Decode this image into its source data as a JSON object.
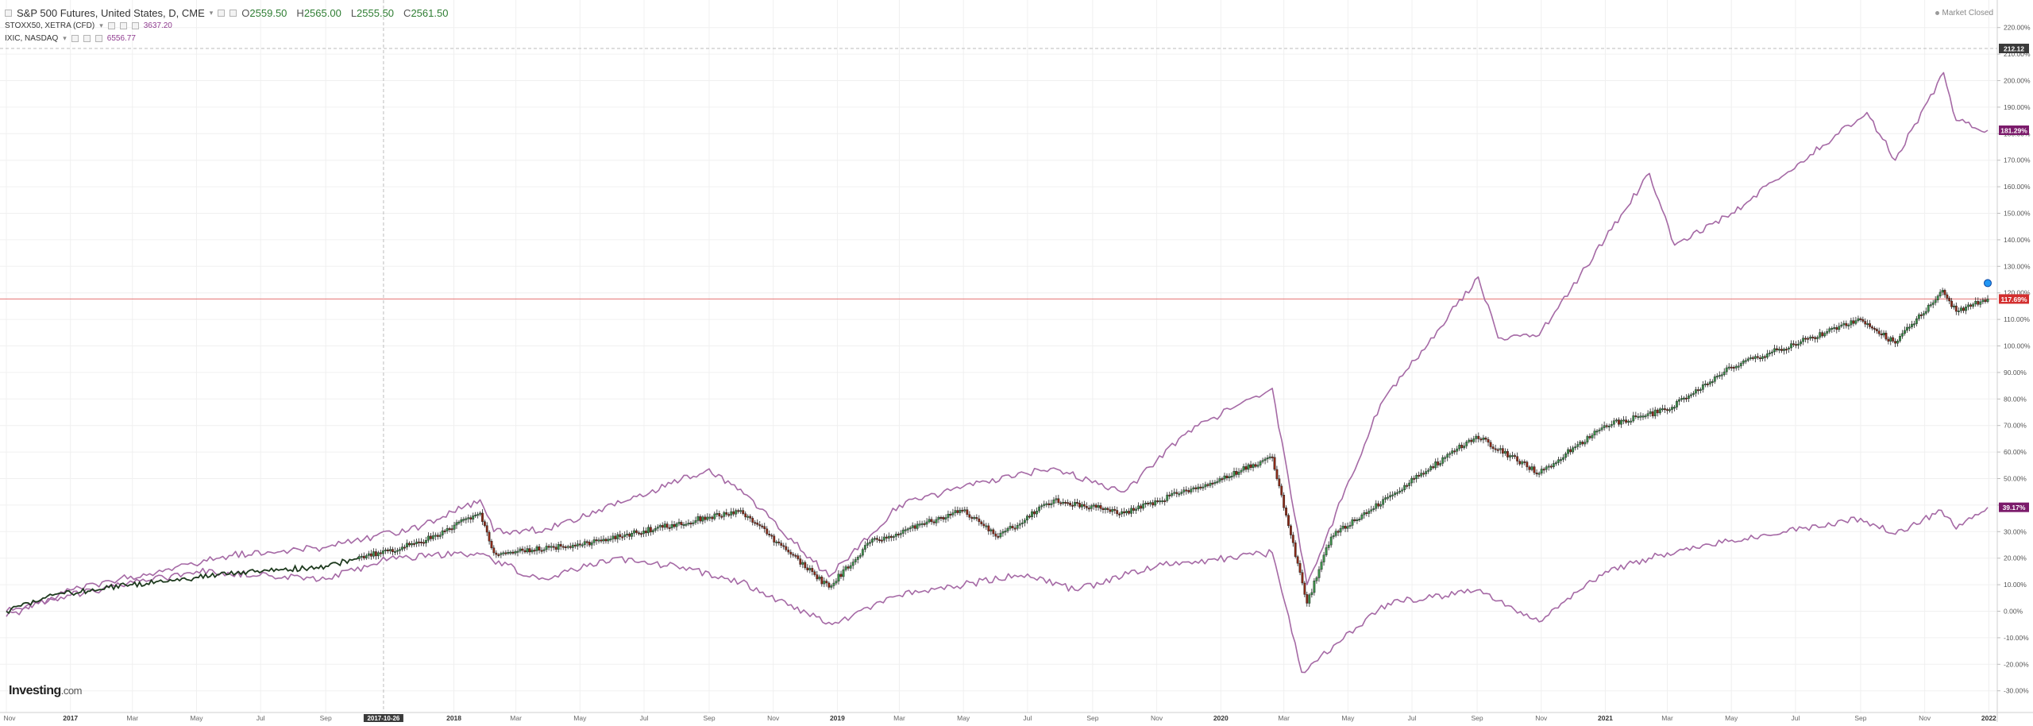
{
  "header": {
    "instrument": "S&P 500 Futures, United States, D, CME",
    "open_label": "O",
    "open": "2559.50",
    "high_label": "H",
    "high": "2565.00",
    "low_label": "L",
    "low": "2555.50",
    "close_label": "C",
    "close": "2561.50",
    "caret": "▾"
  },
  "comparisons": [
    {
      "symbol": "STOXX50, XETRA (CFD)",
      "value": "3637.20"
    },
    {
      "symbol": "IXIC, NASDAQ",
      "value": "6556.77"
    }
  ],
  "market_status": "Market Closed",
  "logo": {
    "brand": "Investing",
    "suffix": ".com"
  },
  "crosshair_date": "2017-10-26",
  "price_labels": {
    "top": "212.12",
    "nasdaq": "181.29%",
    "sp500": "117.69%",
    "stoxx": "39.17%"
  },
  "colors": {
    "nasdaq_line": "#a569a5",
    "stoxx_line": "#a569a5",
    "candle_up": "#3c8f4a",
    "candle_down": "#8b2a17",
    "ref_line": "#e57373",
    "sp_badge": "#d32f2f",
    "purple_badge": "#7b1b6b",
    "dark_badge": "#3a3a3a"
  },
  "chart_data": {
    "type": "line",
    "x_ticks": [
      "Nov",
      "2017",
      "Mar",
      "May",
      "Jul",
      "Sep",
      "2017-10-26",
      "2018",
      "Mar",
      "May",
      "Jul",
      "Sep",
      "Nov",
      "2019",
      "Mar",
      "May",
      "Jul",
      "Sep",
      "Nov",
      "2020",
      "Mar",
      "May",
      "Jul",
      "Sep",
      "Nov",
      "2021",
      "Mar",
      "May",
      "Jul",
      "Sep",
      "Nov",
      "2022"
    ],
    "y_ticks": [
      "220.00%",
      "210.00%",
      "200.00%",
      "190.00%",
      "180.00%",
      "170.00%",
      "160.00%",
      "150.00%",
      "140.00%",
      "130.00%",
      "120.00%",
      "110.00%",
      "100.00%",
      "90.00%",
      "80.00%",
      "70.00%",
      "60.00%",
      "50.00%",
      "40.00%",
      "30.00%",
      "20.00%",
      "10.00%",
      "0.00%",
      "-10.00%",
      "-20.00%",
      "-30.00%"
    ],
    "ylim": [
      -33,
      226
    ],
    "x_range": [
      "2016-11",
      "2022-01"
    ],
    "reference_line": 117.69,
    "grid": true,
    "series": [
      {
        "name": "S&P 500 Futures",
        "style": "candlestick",
        "x": [
          "2016-11-01",
          "2016-12-15",
          "2017-03-01",
          "2017-06-01",
          "2017-09-01",
          "2017-12-01",
          "2018-01-26",
          "2018-02-08",
          "2018-05-01",
          "2018-08-01",
          "2018-10-01",
          "2018-12-24",
          "2019-02-01",
          "2019-04-30",
          "2019-06-03",
          "2019-07-26",
          "2019-10-01",
          "2019-12-31",
          "2020-02-19",
          "2020-03-23",
          "2020-04-15",
          "2020-06-08",
          "2020-08-31",
          "2020-10-30",
          "2020-12-31",
          "2021-03-01",
          "2021-05-01",
          "2021-09-01",
          "2021-10-04",
          "2021-11-18",
          "2021-12-01",
          "2021-12-31"
        ],
        "y": [
          0,
          6,
          10,
          14,
          17,
          26,
          37,
          22,
          25,
          33,
          38,
          9,
          26,
          38,
          28,
          42,
          37,
          50,
          58,
          3,
          28,
          43,
          66,
          52,
          70,
          76,
          92,
          110,
          101,
          121,
          113,
          117.69
        ]
      },
      {
        "name": "IXIC, NASDAQ",
        "style": "line",
        "x": [
          "2016-11-01",
          "2017-01-01",
          "2017-06-01",
          "2017-09-01",
          "2017-12-01",
          "2018-01-26",
          "2018-02-08",
          "2018-04-01",
          "2018-08-29",
          "2018-10-01",
          "2018-12-24",
          "2019-03-01",
          "2019-05-01",
          "2019-07-26",
          "2019-10-01",
          "2019-12-01",
          "2020-02-19",
          "2020-03-23",
          "2020-06-01",
          "2020-09-02",
          "2020-09-21",
          "2020-10-30",
          "2021-02-12",
          "2021-03-08",
          "2021-05-01",
          "2021-09-07",
          "2021-10-04",
          "2021-11-19",
          "2021-12-01",
          "2021-12-31"
        ],
        "y": [
          -2,
          8,
          21,
          24,
          32,
          42,
          30,
          31,
          53,
          46,
          13,
          40,
          47,
          54,
          45,
          68,
          84,
          10,
          78,
          126,
          103,
          104,
          165,
          138,
          150,
          188,
          170,
          203,
          185,
          181.29
        ]
      },
      {
        "name": "STOXX50, XETRA (CFD)",
        "style": "line",
        "x": [
          "2016-11-01",
          "2017-01-01",
          "2017-05-01",
          "2017-09-01",
          "2017-11-01",
          "2018-01-23",
          "2018-03-23",
          "2018-06-01",
          "2018-08-01",
          "2018-10-01",
          "2018-12-27",
          "2019-03-01",
          "2019-07-01",
          "2019-08-15",
          "2019-11-01",
          "2020-02-19",
          "2020-03-18",
          "2020-06-08",
          "2020-09-01",
          "2020-10-30",
          "2021-01-01",
          "2021-03-01",
          "2021-06-01",
          "2021-09-01",
          "2021-10-04",
          "2021-11-17",
          "2021-12-01",
          "2021-12-31"
        ],
        "y": [
          0,
          6,
          15,
          12,
          20,
          22,
          12,
          20,
          17,
          11,
          -5,
          6,
          14,
          8,
          17,
          22,
          -23,
          3,
          8,
          -4,
          15,
          22,
          29,
          35,
          29,
          38,
          31,
          39.17
        ]
      }
    ]
  }
}
